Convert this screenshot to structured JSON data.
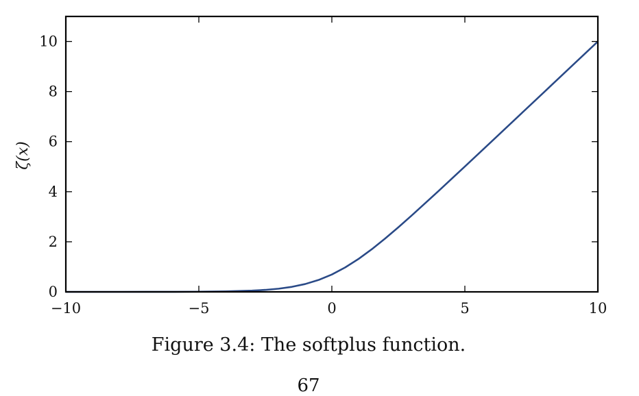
{
  "chart_data": {
    "type": "line",
    "title": "",
    "xlabel": "",
    "ylabel": "ζ(x)",
    "xlim": [
      -10,
      10
    ],
    "ylim": [
      0,
      11
    ],
    "xticks": [
      -10,
      -5,
      0,
      5,
      10
    ],
    "xtick_labels": [
      "−10",
      "−5",
      "0",
      "5",
      "10"
    ],
    "yticks": [
      0,
      2,
      4,
      6,
      8,
      10
    ],
    "ytick_labels": [
      "0",
      "2",
      "4",
      "6",
      "8",
      "10"
    ],
    "grid": false,
    "series": [
      {
        "color": "#2a4a87",
        "x": [
          -10,
          -9,
          -8,
          -7,
          -6,
          -5,
          -4,
          -3,
          -2.5,
          -2,
          -1.5,
          -1,
          -0.5,
          0,
          0.5,
          1,
          1.5,
          2,
          2.5,
          3,
          4,
          5,
          6,
          7,
          8,
          9,
          10
        ],
        "y": [
          0.0,
          0.0001,
          0.0003,
          0.0009,
          0.0025,
          0.0067,
          0.018,
          0.049,
          0.079,
          0.127,
          0.201,
          0.313,
          0.474,
          0.693,
          0.974,
          1.313,
          1.701,
          2.127,
          2.579,
          3.049,
          4.018,
          5.007,
          6.002,
          7.001,
          8.0,
          9.0,
          10.0
        ]
      }
    ]
  },
  "caption": "Figure 3.4: The softplus function.",
  "page_number": "67"
}
